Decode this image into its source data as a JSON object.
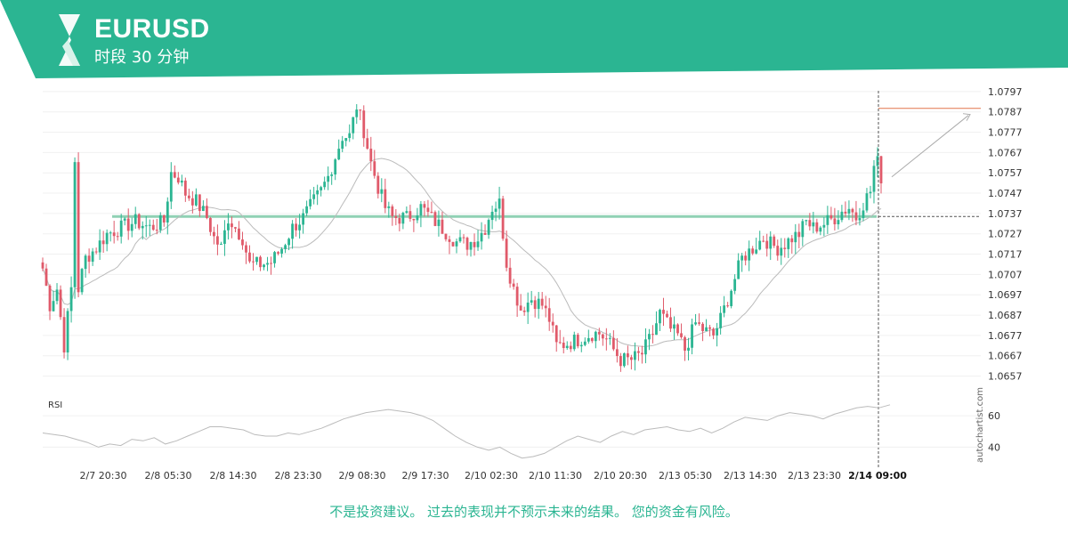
{
  "header": {
    "symbol": "EURUSD",
    "timeframe": "时段 30 分钟",
    "brand_color": "#2bb592",
    "logo_icon": "autochartist-logo-icon"
  },
  "footer": {
    "disclaimer": "不是投资建议。 过去的表现并不预示未来的结果。 您的资金有风险。"
  },
  "watermark": "autochartist.com",
  "chart_data": {
    "type": "candlestick",
    "title": "",
    "xlabel": "",
    "ylabel": "",
    "ylim": [
      1.0652,
      1.08
    ],
    "y_ticks": [
      1.0797,
      1.0787,
      1.0777,
      1.0767,
      1.0757,
      1.0747,
      1.0737,
      1.0727,
      1.0717,
      1.0707,
      1.0697,
      1.0687,
      1.0677,
      1.0667,
      1.0657
    ],
    "x_ticks": [
      "2/7 20:30",
      "2/8 05:30",
      "2/8 14:30",
      "2/8 23:30",
      "2/9 08:30",
      "2/9 17:30",
      "2/10 02:30",
      "2/10 11:30",
      "2/10 20:30",
      "2/13 05:30",
      "2/13 14:30",
      "2/13 23:30",
      "2/14 09:00"
    ],
    "highlight_x_tick": "2/14 09:00",
    "colors": {
      "up": "#2bb592",
      "down": "#e05a6a",
      "level": "#7cc9a8",
      "forecast": "#aaaaaa",
      "target": "#e2734a",
      "ma": "#bbbbbb"
    },
    "support_resistance_level": 1.07355,
    "current_price": 1.07355,
    "target_level": 1.07887,
    "forecast": {
      "from": 1.0755,
      "to": 1.0787
    },
    "price_path": [
      [
        0,
        1.071
      ],
      [
        2,
        1.0692
      ],
      [
        4,
        1.07
      ],
      [
        6,
        1.0672
      ],
      [
        8,
        1.07
      ],
      [
        9,
        1.0763
      ],
      [
        10,
        1.07
      ],
      [
        12,
        1.0715
      ],
      [
        15,
        1.072
      ],
      [
        18,
        1.0727
      ],
      [
        22,
        1.073
      ],
      [
        26,
        1.0733
      ],
      [
        30,
        1.073
      ],
      [
        34,
        1.0733
      ],
      [
        36,
        1.0757
      ],
      [
        38,
        1.0755
      ],
      [
        40,
        1.0747
      ],
      [
        43,
        1.0743
      ],
      [
        46,
        1.0735
      ],
      [
        48,
        1.0725
      ],
      [
        50,
        1.072
      ],
      [
        52,
        1.0735
      ],
      [
        54,
        1.073
      ],
      [
        56,
        1.0725
      ],
      [
        58,
        1.0712
      ],
      [
        61,
        1.0712
      ],
      [
        64,
        1.0713
      ],
      [
        67,
        1.072
      ],
      [
        70,
        1.073
      ],
      [
        73,
        1.0735
      ],
      [
        76,
        1.0743
      ],
      [
        78,
        1.0748
      ],
      [
        80,
        1.0755
      ],
      [
        82,
        1.0765
      ],
      [
        84,
        1.0775
      ],
      [
        86,
        1.0775
      ],
      [
        88,
        1.079
      ],
      [
        90,
        1.0778
      ],
      [
        92,
        1.0762
      ],
      [
        94,
        1.075
      ],
      [
        96,
        1.074
      ],
      [
        98,
        1.0735
      ],
      [
        102,
        1.0735
      ],
      [
        106,
        1.074
      ],
      [
        110,
        1.0733
      ],
      [
        113,
        1.0728
      ],
      [
        116,
        1.0723
      ],
      [
        119,
        1.0722
      ],
      [
        122,
        1.0725
      ],
      [
        124,
        1.073
      ],
      [
        126,
        1.074
      ],
      [
        128,
        1.0742
      ],
      [
        130,
        1.0713
      ],
      [
        132,
        1.07
      ],
      [
        134,
        1.069
      ],
      [
        137,
        1.0695
      ],
      [
        140,
        1.0692
      ],
      [
        142,
        1.0685
      ],
      [
        144,
        1.0672
      ],
      [
        147,
        1.0673
      ],
      [
        150,
        1.0675
      ],
      [
        154,
        1.0678
      ],
      [
        156,
        1.0678
      ],
      [
        158,
        1.0675
      ],
      [
        160,
        1.067
      ],
      [
        162,
        1.0665
      ],
      [
        165,
        1.0665
      ],
      [
        168,
        1.0668
      ],
      [
        171,
        1.0678
      ],
      [
        173,
        1.0688
      ],
      [
        176,
        1.068
      ],
      [
        178,
        1.0677
      ],
      [
        180,
        1.067
      ],
      [
        183,
        1.0683
      ],
      [
        185,
        1.068
      ],
      [
        188,
        1.0677
      ],
      [
        190,
        1.0685
      ],
      [
        192,
        1.0695
      ],
      [
        194,
        1.0705
      ],
      [
        196,
        1.0715
      ],
      [
        199,
        1.072
      ],
      [
        202,
        1.0725
      ],
      [
        204,
        1.0722
      ],
      [
        206,
        1.072
      ],
      [
        208,
        1.0722
      ],
      [
        210,
        1.0725
      ],
      [
        212,
        1.0727
      ],
      [
        214,
        1.0733
      ],
      [
        216,
        1.073
      ],
      [
        219,
        1.0732
      ],
      [
        222,
        1.0735
      ],
      [
        224,
        1.0738
      ],
      [
        226,
        1.074
      ],
      [
        228,
        1.0735
      ],
      [
        230,
        1.0742
      ],
      [
        232,
        1.0748
      ],
      [
        233,
        1.076
      ],
      [
        234,
        1.0762
      ],
      [
        235,
        1.0755
      ]
    ],
    "rsi": {
      "label": "RSI",
      "ticks": [
        60,
        40
      ],
      "ylim": [
        30,
        72
      ],
      "values": [
        49,
        48,
        47,
        45,
        43,
        40,
        42,
        41,
        45,
        44,
        46,
        42,
        44,
        47,
        50,
        53,
        53,
        52,
        51,
        48,
        47,
        47,
        49,
        48,
        50,
        52,
        55,
        58,
        60,
        62,
        63,
        64,
        63,
        62,
        60,
        57,
        52,
        47,
        43,
        40,
        38,
        40,
        36,
        33,
        34,
        36,
        40,
        44,
        47,
        45,
        43,
        47,
        50,
        48,
        51,
        52,
        53,
        51,
        50,
        52,
        49,
        52,
        56,
        59,
        58,
        57,
        60,
        62,
        61,
        60,
        58,
        61,
        63,
        65,
        66,
        65,
        67
      ]
    }
  }
}
